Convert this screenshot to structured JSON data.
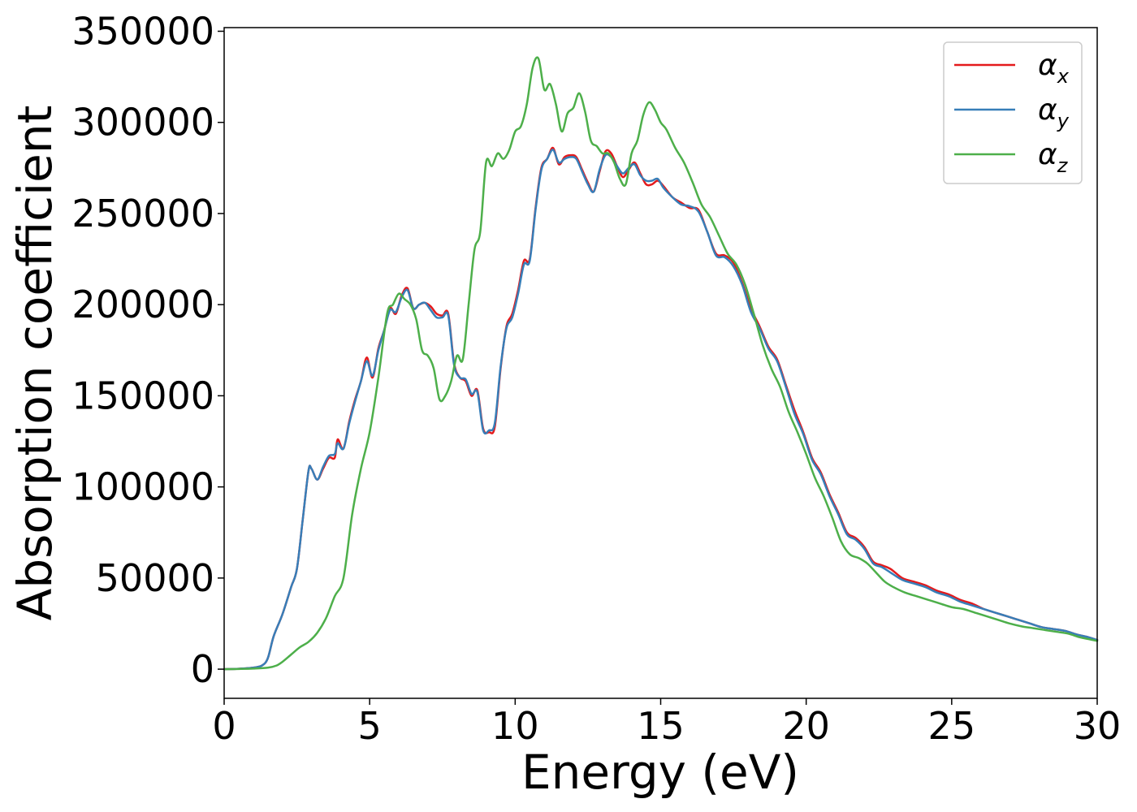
{
  "chart_data": {
    "type": "line",
    "title": "",
    "xlabel": "Energy (eV)",
    "ylabel": "Absorption coefficient",
    "xlim": [
      0,
      30
    ],
    "ylim": [
      -16000,
      352000
    ],
    "xticks": [
      0,
      5,
      10,
      15,
      20,
      25,
      30
    ],
    "yticks": [
      0,
      50000,
      100000,
      150000,
      200000,
      250000,
      300000,
      350000
    ],
    "grid": false,
    "legend_position": "top-right",
    "series": [
      {
        "name": "α",
        "name_sub": "x",
        "color": "#e41a1c",
        "x": [
          0,
          0.5,
          1.0,
          1.3,
          1.5,
          1.7,
          2.0,
          2.3,
          2.5,
          2.7,
          2.9,
          3.0,
          3.2,
          3.4,
          3.6,
          3.8,
          3.9,
          4.1,
          4.3,
          4.5,
          4.7,
          4.9,
          5.1,
          5.3,
          5.5,
          5.7,
          5.9,
          6.1,
          6.3,
          6.5,
          6.7,
          6.9,
          7.1,
          7.3,
          7.5,
          7.7,
          7.9,
          8.1,
          8.3,
          8.5,
          8.7,
          8.9,
          9.1,
          9.3,
          9.5,
          9.7,
          9.9,
          10.1,
          10.3,
          10.5,
          10.7,
          10.9,
          11.1,
          11.3,
          11.5,
          11.7,
          11.9,
          12.1,
          12.3,
          12.5,
          12.7,
          12.9,
          13.1,
          13.3,
          13.5,
          13.7,
          13.9,
          14.1,
          14.3,
          14.5,
          14.7,
          14.9,
          15.1,
          15.4,
          15.7,
          16.0,
          16.3,
          16.6,
          16.9,
          17.2,
          17.5,
          17.8,
          18.1,
          18.4,
          18.7,
          19.0,
          19.3,
          19.6,
          19.9,
          20.2,
          20.5,
          20.8,
          21.1,
          21.4,
          21.7,
          22.0,
          22.3,
          22.6,
          22.9,
          23.3,
          23.7,
          24.1,
          24.5,
          24.9,
          25.3,
          25.7,
          26.1,
          26.5,
          26.9,
          27.3,
          27.7,
          28.1,
          28.5,
          28.9,
          29.3,
          29.7,
          30.0
        ],
        "values": [
          0,
          200,
          800,
          2000,
          6000,
          18000,
          30000,
          45000,
          55000,
          82000,
          109000,
          110000,
          104000,
          110000,
          116000,
          116000,
          126000,
          121000,
          136000,
          148000,
          158000,
          171000,
          160000,
          176000,
          186000,
          198000,
          195000,
          205000,
          209000,
          198000,
          200000,
          201000,
          199000,
          195000,
          194000,
          195000,
          168000,
          160000,
          158000,
          150000,
          153000,
          132000,
          130000,
          133000,
          165000,
          188000,
          195000,
          208000,
          224000,
          225000,
          253000,
          275000,
          280000,
          286000,
          277000,
          281000,
          282000,
          281000,
          274000,
          267000,
          262000,
          273000,
          284000,
          283000,
          276000,
          270000,
          274000,
          278000,
          272000,
          266000,
          266000,
          268000,
          265000,
          259000,
          256000,
          253000,
          252000,
          240000,
          228000,
          227000,
          223000,
          212000,
          198000,
          188000,
          177000,
          170000,
          156000,
          142000,
          130000,
          116000,
          108000,
          96000,
          86000,
          75000,
          72000,
          67000,
          59000,
          57000,
          55000,
          50000,
          48000,
          46000,
          43000,
          41000,
          38000,
          36000,
          33000,
          31000,
          29000,
          27000,
          25000,
          23000,
          22000,
          21000,
          19000,
          17500,
          16000
        ]
      },
      {
        "name": "α",
        "name_sub": "y",
        "color": "#377eb8",
        "x": [
          0,
          0.5,
          1.0,
          1.3,
          1.5,
          1.7,
          2.0,
          2.3,
          2.5,
          2.7,
          2.9,
          3.0,
          3.2,
          3.4,
          3.6,
          3.8,
          3.9,
          4.1,
          4.3,
          4.5,
          4.7,
          4.9,
          5.1,
          5.3,
          5.5,
          5.7,
          5.9,
          6.1,
          6.3,
          6.5,
          6.7,
          6.9,
          7.1,
          7.3,
          7.5,
          7.7,
          7.9,
          8.1,
          8.3,
          8.5,
          8.7,
          8.9,
          9.1,
          9.3,
          9.5,
          9.7,
          9.9,
          10.1,
          10.3,
          10.5,
          10.7,
          10.9,
          11.1,
          11.3,
          11.5,
          11.7,
          11.9,
          12.1,
          12.3,
          12.5,
          12.7,
          12.9,
          13.1,
          13.3,
          13.5,
          13.7,
          13.9,
          14.1,
          14.3,
          14.5,
          14.7,
          14.9,
          15.1,
          15.4,
          15.7,
          16.0,
          16.3,
          16.6,
          16.9,
          17.2,
          17.5,
          17.8,
          18.1,
          18.4,
          18.7,
          19.0,
          19.3,
          19.6,
          19.9,
          20.2,
          20.5,
          20.8,
          21.1,
          21.4,
          21.7,
          22.0,
          22.3,
          22.6,
          22.9,
          23.3,
          23.7,
          24.1,
          24.5,
          24.9,
          25.3,
          25.7,
          26.1,
          26.5,
          26.9,
          27.3,
          27.7,
          28.1,
          28.5,
          28.9,
          29.3,
          29.7,
          30.0
        ],
        "values": [
          0,
          200,
          800,
          2000,
          6000,
          18000,
          30000,
          45000,
          55000,
          82000,
          109000,
          110000,
          104000,
          111000,
          117000,
          118000,
          124000,
          121000,
          135000,
          147000,
          158000,
          169000,
          161000,
          175000,
          186000,
          197000,
          196000,
          204000,
          208000,
          198000,
          200000,
          201000,
          197000,
          193000,
          193000,
          194000,
          167000,
          160000,
          159000,
          151000,
          152000,
          131000,
          131000,
          135000,
          166000,
          187000,
          193000,
          206000,
          222000,
          224000,
          252000,
          274000,
          280000,
          285000,
          278000,
          280000,
          281000,
          280000,
          273000,
          266000,
          262000,
          274000,
          282000,
          281000,
          276000,
          272000,
          275000,
          277000,
          271000,
          268000,
          268000,
          269000,
          264000,
          259000,
          255000,
          254000,
          251000,
          240000,
          227000,
          226000,
          221000,
          211000,
          196000,
          187000,
          176000,
          169000,
          155000,
          140000,
          129000,
          115000,
          107000,
          95000,
          85000,
          74000,
          71000,
          66000,
          58000,
          56000,
          53000,
          49000,
          47000,
          45000,
          42000,
          40000,
          37000,
          35000,
          33000,
          31000,
          29000,
          27000,
          25000,
          23000,
          22000,
          21000,
          19000,
          17500,
          16000
        ]
      },
      {
        "name": "α",
        "name_sub": "z",
        "color": "#4daf4a",
        "x": [
          0,
          0.5,
          1.0,
          1.5,
          1.8,
          2.0,
          2.3,
          2.6,
          2.9,
          3.2,
          3.5,
          3.8,
          4.1,
          4.4,
          4.7,
          5.0,
          5.3,
          5.6,
          5.8,
          6.0,
          6.2,
          6.4,
          6.6,
          6.8,
          7.0,
          7.2,
          7.4,
          7.6,
          7.8,
          8.0,
          8.2,
          8.4,
          8.6,
          8.8,
          9.0,
          9.2,
          9.4,
          9.6,
          9.8,
          10.0,
          10.2,
          10.4,
          10.6,
          10.8,
          11.0,
          11.2,
          11.4,
          11.6,
          11.8,
          12.0,
          12.2,
          12.4,
          12.6,
          12.8,
          13.0,
          13.2,
          13.4,
          13.6,
          13.8,
          14.0,
          14.2,
          14.4,
          14.6,
          14.8,
          15.0,
          15.2,
          15.5,
          15.8,
          16.1,
          16.4,
          16.7,
          17.0,
          17.3,
          17.6,
          17.9,
          18.2,
          18.5,
          18.8,
          19.1,
          19.4,
          19.7,
          20.0,
          20.3,
          20.6,
          20.9,
          21.2,
          21.5,
          21.8,
          22.1,
          22.4,
          22.7,
          23.0,
          23.4,
          23.8,
          24.2,
          24.6,
          25.0,
          25.4,
          25.8,
          26.2,
          26.6,
          27.0,
          27.4,
          27.8,
          28.2,
          28.6,
          29.0,
          29.4,
          29.7,
          30.0
        ],
        "values": [
          0,
          100,
          300,
          800,
          2000,
          4000,
          8000,
          12000,
          15000,
          20000,
          28000,
          40000,
          50000,
          85000,
          110000,
          130000,
          160000,
          195000,
          200000,
          206000,
          203000,
          200000,
          192000,
          175000,
          172000,
          165000,
          148000,
          150000,
          158000,
          172000,
          170000,
          200000,
          230000,
          240000,
          278000,
          276000,
          283000,
          280000,
          285000,
          295000,
          298000,
          310000,
          330000,
          335000,
          318000,
          321000,
          310000,
          295000,
          305000,
          308000,
          316000,
          306000,
          290000,
          287000,
          283000,
          283000,
          278000,
          269000,
          266000,
          283000,
          290000,
          304000,
          311000,
          307000,
          300000,
          296000,
          286000,
          278000,
          267000,
          255000,
          248000,
          238000,
          228000,
          222000,
          211000,
          195000,
          178000,
          165000,
          155000,
          141000,
          130000,
          118000,
          105000,
          95000,
          83000,
          70000,
          63000,
          61000,
          58000,
          53000,
          48000,
          45000,
          42000,
          40000,
          38000,
          36000,
          34000,
          33000,
          31000,
          29000,
          27000,
          25000,
          23500,
          22500,
          21500,
          20500,
          19500,
          17500,
          16500,
          15500
        ]
      }
    ]
  }
}
